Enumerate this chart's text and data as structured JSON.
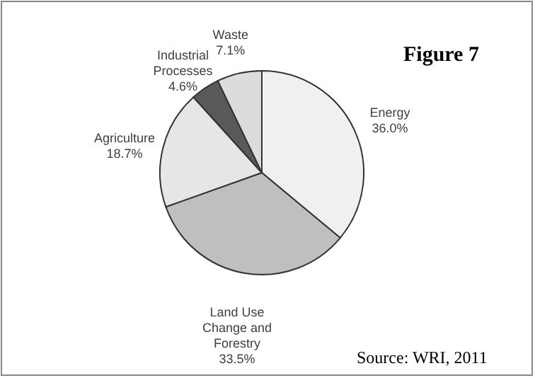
{
  "chart_data": {
    "type": "pie",
    "title": "Figure 7",
    "categories": [
      "Energy",
      "Land Use Change and Forestry",
      "Agriculture",
      "Industrial Processes",
      "Waste"
    ],
    "values": [
      36.0,
      33.5,
      18.7,
      4.6,
      7.1
    ],
    "colors": [
      "#f0f0f0",
      "#bfbfbf",
      "#e6e6e6",
      "#595959",
      "#dcdcdc"
    ],
    "value_labels": [
      "36.0%",
      "33.5%",
      "18.7%",
      "4.6%",
      "7.1%"
    ],
    "legend": false,
    "annotations": [
      "Source: WRI, 2011"
    ]
  }
}
